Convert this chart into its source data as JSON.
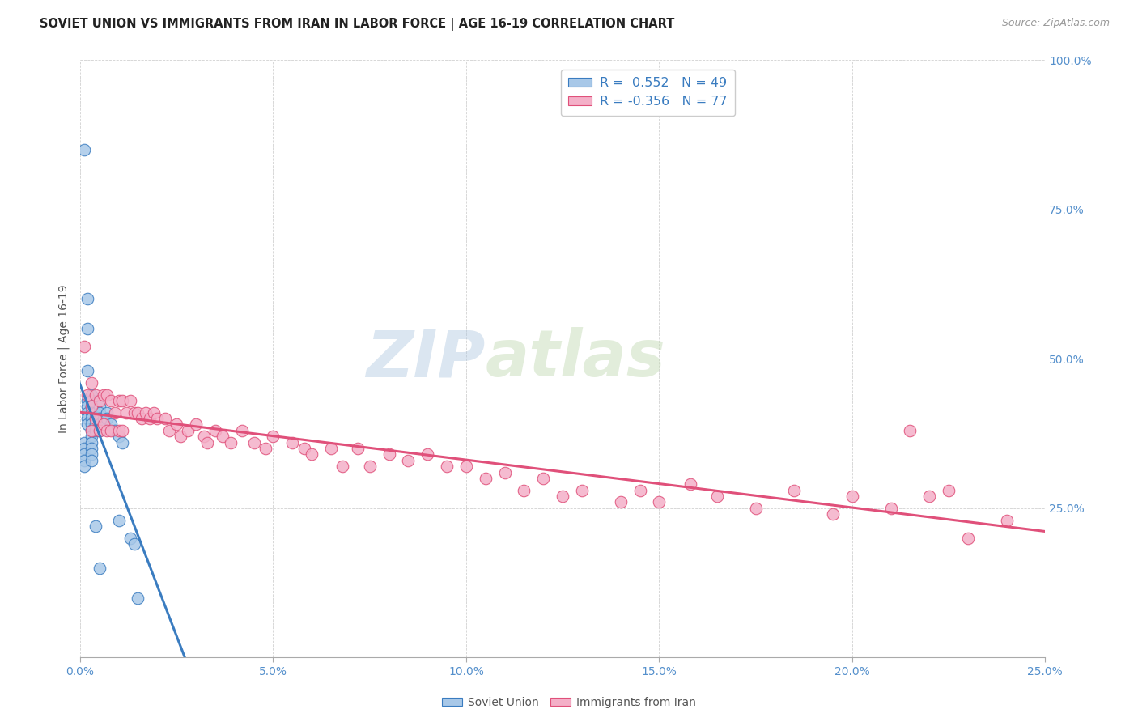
{
  "title": "SOVIET UNION VS IMMIGRANTS FROM IRAN IN LABOR FORCE | AGE 16-19 CORRELATION CHART",
  "source": "Source: ZipAtlas.com",
  "ylabel": "In Labor Force | Age 16-19",
  "xlim": [
    0.0,
    0.25
  ],
  "ylim": [
    0.0,
    1.0
  ],
  "xticks": [
    0.0,
    0.05,
    0.1,
    0.15,
    0.2,
    0.25
  ],
  "yticks": [
    0.0,
    0.25,
    0.5,
    0.75,
    1.0
  ],
  "xticklabels": [
    "0.0%",
    "5.0%",
    "10.0%",
    "15.0%",
    "20.0%",
    "25.0%"
  ],
  "yticklabels_right": [
    "",
    "25.0%",
    "50.0%",
    "75.0%",
    "100.0%"
  ],
  "blue_R": 0.552,
  "blue_N": 49,
  "pink_R": -0.356,
  "pink_N": 77,
  "legend1": "Soviet Union",
  "legend2": "Immigrants from Iran",
  "blue_color": "#a8c8e8",
  "pink_color": "#f4b0c8",
  "blue_line_color": "#3a7cc0",
  "pink_line_color": "#e0507a",
  "watermark_zip": "ZIP",
  "watermark_atlas": "atlas",
  "blue_scatter_x": [
    0.001,
    0.001,
    0.001,
    0.001,
    0.001,
    0.001,
    0.002,
    0.002,
    0.002,
    0.002,
    0.002,
    0.002,
    0.002,
    0.002,
    0.003,
    0.003,
    0.003,
    0.003,
    0.003,
    0.003,
    0.003,
    0.003,
    0.003,
    0.003,
    0.003,
    0.003,
    0.004,
    0.004,
    0.004,
    0.004,
    0.004,
    0.005,
    0.005,
    0.005,
    0.005,
    0.005,
    0.005,
    0.006,
    0.006,
    0.007,
    0.007,
    0.008,
    0.009,
    0.01,
    0.01,
    0.011,
    0.013,
    0.014,
    0.015
  ],
  "blue_scatter_y": [
    0.85,
    0.36,
    0.35,
    0.34,
    0.33,
    0.32,
    0.6,
    0.55,
    0.48,
    0.43,
    0.42,
    0.41,
    0.4,
    0.39,
    0.44,
    0.43,
    0.42,
    0.41,
    0.4,
    0.39,
    0.38,
    0.37,
    0.36,
    0.35,
    0.34,
    0.33,
    0.41,
    0.4,
    0.39,
    0.38,
    0.22,
    0.42,
    0.41,
    0.4,
    0.39,
    0.38,
    0.15,
    0.4,
    0.39,
    0.41,
    0.4,
    0.39,
    0.38,
    0.37,
    0.23,
    0.36,
    0.2,
    0.19,
    0.1
  ],
  "pink_scatter_x": [
    0.001,
    0.002,
    0.003,
    0.003,
    0.003,
    0.004,
    0.004,
    0.005,
    0.005,
    0.006,
    0.006,
    0.007,
    0.007,
    0.008,
    0.008,
    0.009,
    0.01,
    0.01,
    0.011,
    0.011,
    0.012,
    0.013,
    0.014,
    0.015,
    0.016,
    0.017,
    0.018,
    0.019,
    0.02,
    0.022,
    0.023,
    0.025,
    0.026,
    0.028,
    0.03,
    0.032,
    0.033,
    0.035,
    0.037,
    0.039,
    0.042,
    0.045,
    0.048,
    0.05,
    0.055,
    0.058,
    0.06,
    0.065,
    0.068,
    0.072,
    0.075,
    0.08,
    0.085,
    0.09,
    0.095,
    0.1,
    0.105,
    0.11,
    0.115,
    0.12,
    0.125,
    0.13,
    0.14,
    0.145,
    0.15,
    0.158,
    0.165,
    0.175,
    0.185,
    0.195,
    0.2,
    0.21,
    0.215,
    0.22,
    0.225,
    0.23,
    0.24
  ],
  "pink_scatter_y": [
    0.52,
    0.44,
    0.46,
    0.42,
    0.38,
    0.44,
    0.4,
    0.43,
    0.38,
    0.44,
    0.39,
    0.44,
    0.38,
    0.43,
    0.38,
    0.41,
    0.43,
    0.38,
    0.43,
    0.38,
    0.41,
    0.43,
    0.41,
    0.41,
    0.4,
    0.41,
    0.4,
    0.41,
    0.4,
    0.4,
    0.38,
    0.39,
    0.37,
    0.38,
    0.39,
    0.37,
    0.36,
    0.38,
    0.37,
    0.36,
    0.38,
    0.36,
    0.35,
    0.37,
    0.36,
    0.35,
    0.34,
    0.35,
    0.32,
    0.35,
    0.32,
    0.34,
    0.33,
    0.34,
    0.32,
    0.32,
    0.3,
    0.31,
    0.28,
    0.3,
    0.27,
    0.28,
    0.26,
    0.28,
    0.26,
    0.29,
    0.27,
    0.25,
    0.28,
    0.24,
    0.27,
    0.25,
    0.38,
    0.27,
    0.28,
    0.2,
    0.23
  ]
}
